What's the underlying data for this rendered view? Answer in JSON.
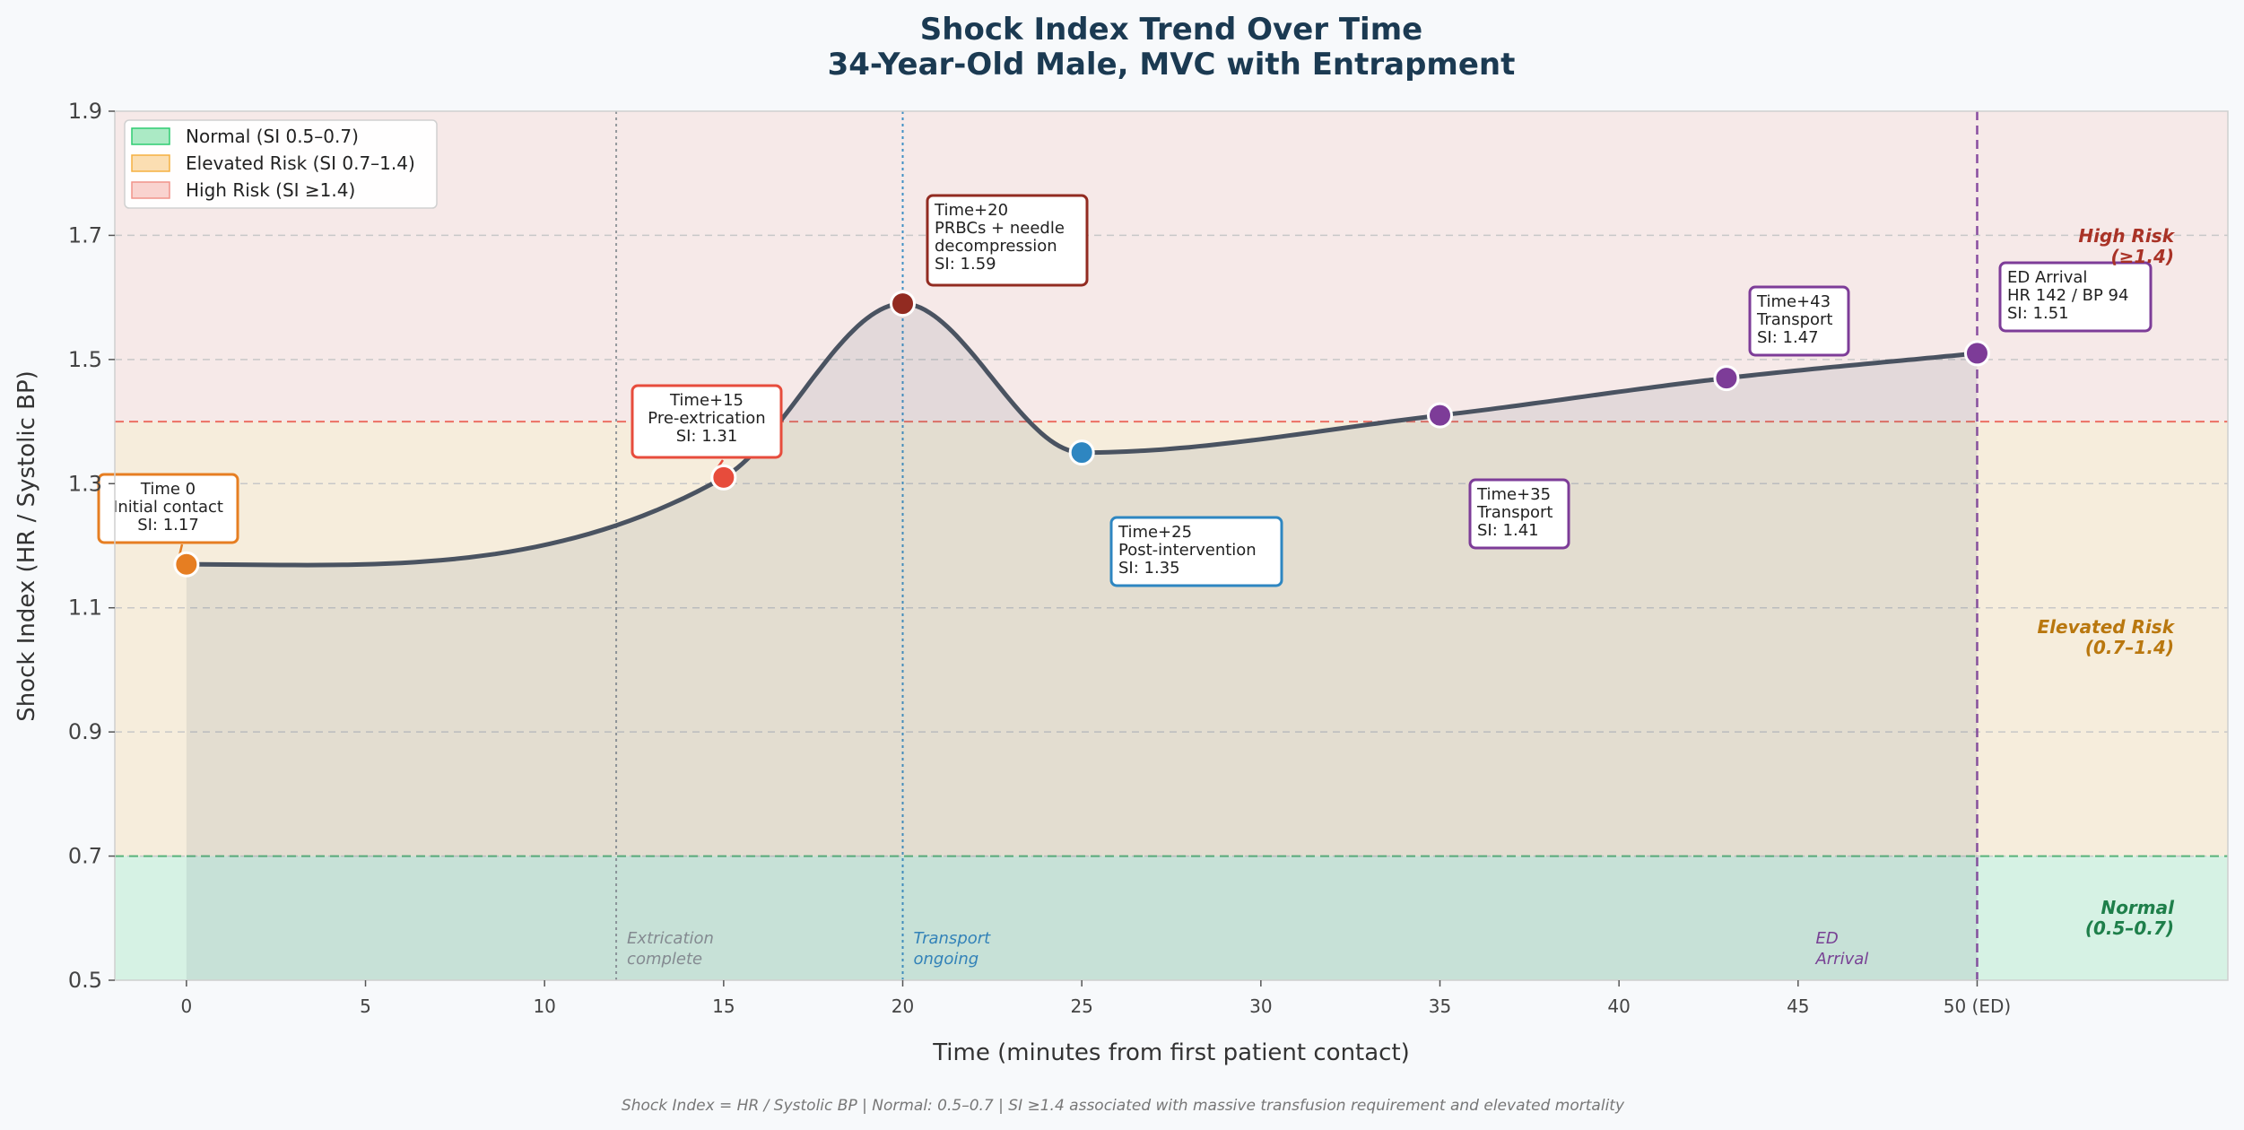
{
  "title_line1": "Shock Index Trend Over Time",
  "title_line2": "34-Year-Old Male, MVC with Entrapment",
  "footer": "Shock Index = HR / Systolic BP  |  Normal: 0.5–0.7  |  SI ≥1.4 associated with massive transfusion requirement and elevated mortality",
  "colors": {
    "normal": "#2ecc71",
    "elevated": "#f5b041",
    "high": "#f1948a",
    "line": "#4a5361",
    "title": "#1b3a52"
  },
  "chart_data": {
    "type": "line",
    "title": "Shock Index Trend Over Time — 34-Year-Old Male, MVC with Entrapment",
    "xlabel": "Time (minutes from first patient contact)",
    "ylabel": "Shock Index (HR / Systolic BP)",
    "xlim": [
      -2,
      57
    ],
    "ylim": [
      0.5,
      1.9
    ],
    "x_ticks": [
      0,
      5,
      10,
      15,
      20,
      25,
      30,
      35,
      40,
      45,
      50
    ],
    "x_tick_labels": [
      "0",
      "5",
      "10",
      "15",
      "20",
      "25",
      "30",
      "35",
      "40",
      "45",
      "50 (ED)"
    ],
    "y_ticks": [
      0.5,
      0.7,
      0.9,
      1.1,
      1.3,
      1.5,
      1.7,
      1.9
    ],
    "y_tick_labels": [
      "0.5",
      "0.7",
      "0.9",
      "1.1",
      "1.3",
      "1.5",
      "1.7",
      "1.9"
    ],
    "grid": true,
    "legend_position": "top-left",
    "bands": [
      {
        "name": "Normal",
        "legend": "Normal (SI 0.5–0.7)",
        "from": 0.5,
        "to": 0.7,
        "color": "#2ecc71",
        "label_line1": "Normal",
        "label_line2": "(0.5–0.7)",
        "label_color": "#1e7f4a"
      },
      {
        "name": "Elevated",
        "legend": "Elevated Risk (SI 0.7–1.4)",
        "from": 0.7,
        "to": 1.4,
        "color": "#f5b041",
        "label_line1": "Elevated Risk",
        "label_line2": "(0.7–1.4)",
        "label_color": "#b9770e"
      },
      {
        "name": "High",
        "legend": "High Risk (SI ≥1.4)",
        "from": 1.4,
        "to": 1.9,
        "color": "#f1948a",
        "label_line1": "High Risk",
        "label_line2": "(≥1.4)",
        "label_color": "#a93226"
      }
    ],
    "threshold_lines": [
      0.7,
      1.4
    ],
    "vertical_markers": [
      {
        "x": 12,
        "line1": "Extrication",
        "line2": "complete",
        "color": "#8a8f94",
        "style": "dotted"
      },
      {
        "x": 20,
        "line1": "Transport",
        "line2": "ongoing",
        "color": "#2e86c1",
        "style": "dotted"
      },
      {
        "x": 50,
        "line1": "ED",
        "line2": "Arrival",
        "color": "#7d3c98",
        "style": "dashed"
      }
    ],
    "series": [
      {
        "name": "Shock Index",
        "points": [
          {
            "x": 0,
            "y": 1.17,
            "color": "#e67e22",
            "label": [
              "Time 0",
              "Initial contact",
              "SI: 1.17"
            ]
          },
          {
            "x": 15,
            "y": 1.31,
            "color": "#e74c3c",
            "label": [
              "Time+15",
              "Pre-extrication",
              "SI: 1.31"
            ]
          },
          {
            "x": 20,
            "y": 1.59,
            "color": "#922b21",
            "label": [
              "Time+20",
              "PRBCs + needle",
              "decompression",
              "SI: 1.59"
            ]
          },
          {
            "x": 25,
            "y": 1.35,
            "color": "#2e86c1",
            "label": [
              "Time+25",
              "Post-intervention",
              "SI: 1.35"
            ]
          },
          {
            "x": 35,
            "y": 1.41,
            "color": "#7d3c98",
            "label": [
              "Time+35",
              "Transport",
              "SI: 1.41"
            ]
          },
          {
            "x": 43,
            "y": 1.47,
            "color": "#7d3c98",
            "label": [
              "Time+43",
              "Transport",
              "SI: 1.47"
            ]
          },
          {
            "x": 50,
            "y": 1.51,
            "color": "#7d3c98",
            "label": [
              "ED Arrival",
              "HR 142 / BP 94",
              "SI: 1.51"
            ]
          }
        ]
      }
    ]
  }
}
